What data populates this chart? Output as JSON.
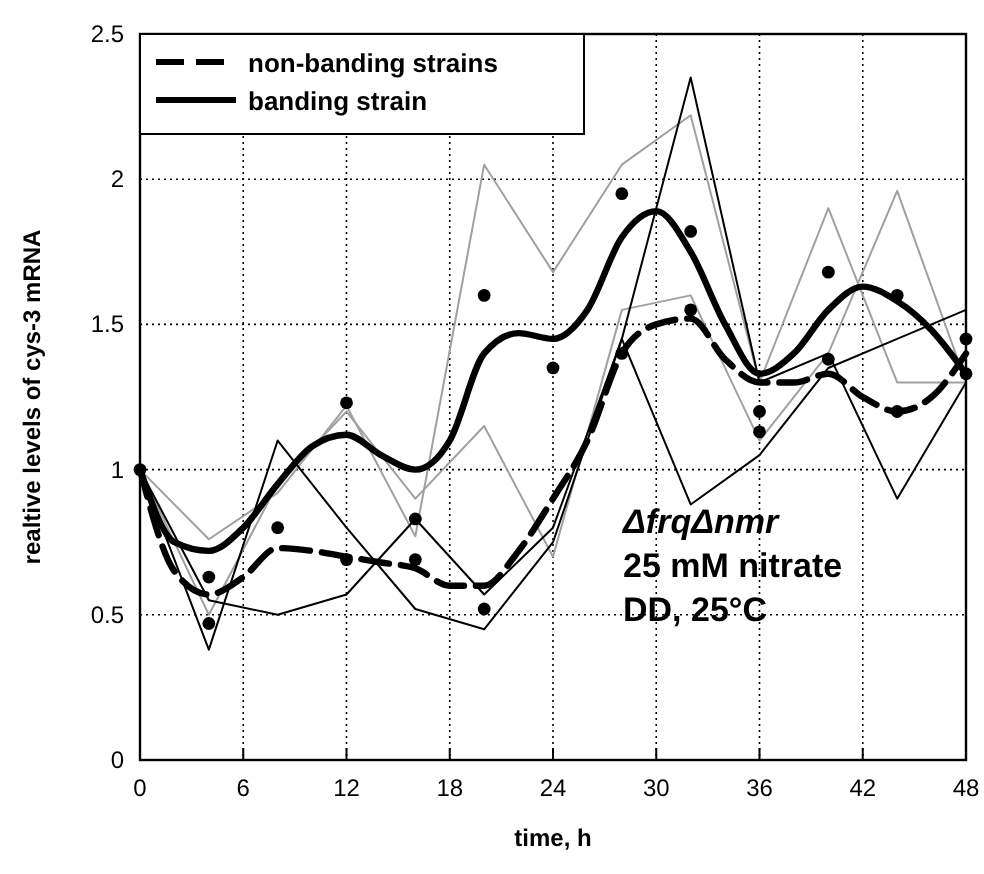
{
  "chart_data": {
    "type": "line",
    "xlabel": "time, h",
    "ylabel": "realtive levels of cys-3 mRNA",
    "xlim": [
      0,
      48
    ],
    "xticks": [
      0,
      6,
      12,
      18,
      24,
      30,
      36,
      42,
      48
    ],
    "ylim": [
      0,
      2.5
    ],
    "yticks": [
      0,
      0.5,
      1,
      1.5,
      2,
      2.5
    ],
    "grid": true,
    "legend": "top left",
    "annotations": [
      "ΔfrqΔnmr",
      "25 mM nitrate",
      "DD, 25°C"
    ],
    "series": [
      {
        "color": "#a0a0a0",
        "x": [
          0,
          4,
          8,
          12,
          16,
          20,
          24,
          28,
          32,
          36,
          40,
          44,
          48
        ],
        "values": [
          1,
          0.76,
          0.92,
          1.22,
          0.77,
          2.05,
          1.68,
          2.05,
          2.22,
          1.3,
          1.9,
          1.3,
          1.3
        ]
      },
      {
        "color": "#a0a0a0",
        "x": [
          0,
          4,
          8,
          12,
          16,
          20,
          24,
          28,
          32,
          36,
          40,
          44,
          48
        ],
        "values": [
          1,
          0.5,
          0.95,
          1.2,
          0.9,
          1.15,
          0.7,
          1.55,
          1.6,
          1.1,
          1.4,
          1.96,
          1.3
        ]
      },
      {
        "color": "#000000",
        "x": [
          0,
          4,
          8,
          12,
          16,
          20,
          24,
          28,
          32,
          36,
          40,
          44,
          48
        ],
        "values": [
          1,
          0.38,
          1.1,
          0.8,
          0.52,
          0.45,
          0.75,
          1.45,
          2.35,
          1.3,
          1.4,
          0.9,
          1.3
        ]
      },
      {
        "color": "#000000",
        "x": [
          0,
          4,
          8,
          12,
          16,
          20,
          24,
          28,
          32,
          36,
          40,
          44,
          48
        ],
        "values": [
          1,
          0.55,
          0.5,
          0.57,
          0.83,
          0.57,
          0.8,
          1.45,
          0.88,
          1.05,
          1.35,
          1.45,
          1.55
        ]
      },
      {
        "name": "non-banding strains",
        "color": "#000000",
        "line_style": "dashed",
        "x": [
          0,
          2,
          4,
          6,
          8,
          10,
          12,
          14,
          16,
          18,
          20,
          22,
          24,
          26,
          28,
          30,
          32,
          34,
          36,
          38,
          40,
          42,
          44,
          46,
          48
        ],
        "values": [
          1,
          0.65,
          0.57,
          0.63,
          0.73,
          0.72,
          0.7,
          0.68,
          0.66,
          0.6,
          0.6,
          0.72,
          0.9,
          1.1,
          1.4,
          1.5,
          1.52,
          1.38,
          1.3,
          1.3,
          1.33,
          1.25,
          1.2,
          1.25,
          1.4
        ]
      },
      {
        "name": "banding strain",
        "color": "#000000",
        "line_style": "solid",
        "x": [
          0,
          2,
          4,
          6,
          8,
          10,
          12,
          14,
          16,
          18,
          20,
          22,
          24,
          26,
          28,
          30,
          32,
          34,
          36,
          38,
          40,
          42,
          44,
          46,
          48
        ],
        "values": [
          1,
          0.75,
          0.72,
          0.8,
          0.95,
          1.08,
          1.12,
          1.05,
          1.0,
          1.1,
          1.4,
          1.47,
          1.45,
          1.55,
          1.8,
          1.89,
          1.75,
          1.5,
          1.33,
          1.4,
          1.55,
          1.63,
          1.58,
          1.48,
          1.33
        ]
      },
      {
        "type": "scatter",
        "color": "#000000",
        "marker": "circle",
        "x": [
          0,
          4,
          4,
          8,
          12,
          12,
          16,
          16,
          20,
          20,
          24,
          28,
          28,
          32,
          32,
          36,
          36,
          40,
          40,
          44,
          44,
          48,
          48
        ],
        "values": [
          1,
          0.63,
          0.47,
          0.8,
          1.23,
          0.69,
          0.83,
          0.69,
          1.6,
          0.52,
          1.35,
          1.95,
          1.4,
          1.82,
          1.55,
          1.2,
          1.13,
          1.68,
          1.38,
          1.6,
          1.2,
          1.45,
          1.33
        ]
      }
    ]
  }
}
